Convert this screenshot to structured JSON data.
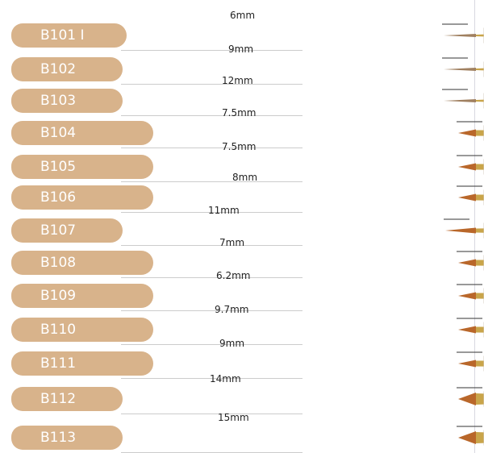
{
  "colors": {
    "label_bg": "#d8b38b",
    "label_text": "#ffffff",
    "ferrule": "#c9a54a",
    "handle": "#ece4dc"
  },
  "brushes": [
    {
      "code": "B101 I",
      "size": "6mm",
      "type": "liner"
    },
    {
      "code": "B102",
      "size": "9mm",
      "type": "liner"
    },
    {
      "code": "B103",
      "size": "12mm",
      "type": "liner"
    },
    {
      "code": "B104",
      "size": "7.5mm",
      "type": "flat"
    },
    {
      "code": "B105",
      "size": "7.5mm",
      "type": "flat"
    },
    {
      "code": "B106",
      "size": "8mm",
      "type": "flat"
    },
    {
      "code": "B107",
      "size": "11mm",
      "type": "round"
    },
    {
      "code": "B108",
      "size": "7mm",
      "type": "flat"
    },
    {
      "code": "B109",
      "size": "6.2mm",
      "type": "flat"
    },
    {
      "code": "B110",
      "size": "9.7mm",
      "type": "flat"
    },
    {
      "code": "B111",
      "size": "9mm",
      "type": "flat"
    },
    {
      "code": "B112",
      "size": "14mm",
      "type": "fan"
    },
    {
      "code": "B113",
      "size": "15mm",
      "type": "fan"
    }
  ]
}
